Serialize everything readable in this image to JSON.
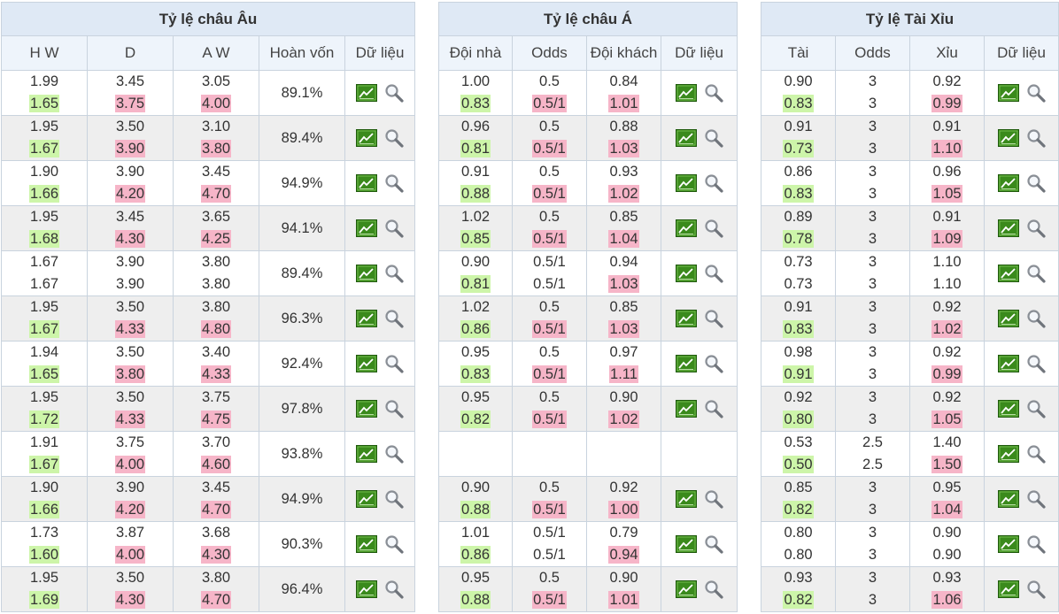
{
  "europe": {
    "title": "Tỷ lệ châu Âu",
    "headers": [
      "H W",
      "D",
      "A W",
      "Hoàn vốn",
      "Dữ liệu"
    ],
    "rows": [
      {
        "a": {
          "o": "1.99",
          "c": "1.65",
          "s": "up"
        },
        "b": {
          "o": "3.45",
          "c": "3.75",
          "s": "dn"
        },
        "c": {
          "o": "3.05",
          "c": "4.00",
          "s": "dn"
        },
        "ret": "89.1%"
      },
      {
        "a": {
          "o": "1.95",
          "c": "1.67",
          "s": "up"
        },
        "b": {
          "o": "3.50",
          "c": "3.90",
          "s": "dn"
        },
        "c": {
          "o": "3.10",
          "c": "3.80",
          "s": "dn"
        },
        "ret": "89.4%"
      },
      {
        "a": {
          "o": "1.90",
          "c": "1.66",
          "s": "up"
        },
        "b": {
          "o": "3.90",
          "c": "4.20",
          "s": "dn"
        },
        "c": {
          "o": "3.45",
          "c": "4.70",
          "s": "dn"
        },
        "ret": "94.9%"
      },
      {
        "a": {
          "o": "1.95",
          "c": "1.68",
          "s": "up"
        },
        "b": {
          "o": "3.45",
          "c": "4.30",
          "s": "dn"
        },
        "c": {
          "o": "3.65",
          "c": "4.25",
          "s": "dn"
        },
        "ret": "94.1%"
      },
      {
        "a": {
          "o": "1.67",
          "c": "1.67",
          "s": ""
        },
        "b": {
          "o": "3.90",
          "c": "3.90",
          "s": ""
        },
        "c": {
          "o": "3.80",
          "c": "3.80",
          "s": ""
        },
        "ret": "89.4%"
      },
      {
        "a": {
          "o": "1.95",
          "c": "1.67",
          "s": "up"
        },
        "b": {
          "o": "3.50",
          "c": "4.33",
          "s": "dn"
        },
        "c": {
          "o": "3.80",
          "c": "4.80",
          "s": "dn"
        },
        "ret": "96.3%"
      },
      {
        "a": {
          "o": "1.94",
          "c": "1.65",
          "s": "up"
        },
        "b": {
          "o": "3.50",
          "c": "3.80",
          "s": "dn"
        },
        "c": {
          "o": "3.40",
          "c": "4.33",
          "s": "dn"
        },
        "ret": "92.4%"
      },
      {
        "a": {
          "o": "1.95",
          "c": "1.72",
          "s": "up"
        },
        "b": {
          "o": "3.50",
          "c": "4.33",
          "s": "dn"
        },
        "c": {
          "o": "3.75",
          "c": "4.75",
          "s": "dn"
        },
        "ret": "97.8%"
      },
      {
        "a": {
          "o": "1.91",
          "c": "1.67",
          "s": "up"
        },
        "b": {
          "o": "3.75",
          "c": "4.00",
          "s": "dn"
        },
        "c": {
          "o": "3.70",
          "c": "4.60",
          "s": "dn"
        },
        "ret": "93.8%"
      },
      {
        "a": {
          "o": "1.90",
          "c": "1.66",
          "s": "up"
        },
        "b": {
          "o": "3.90",
          "c": "4.20",
          "s": "dn"
        },
        "c": {
          "o": "3.45",
          "c": "4.70",
          "s": "dn"
        },
        "ret": "94.9%"
      },
      {
        "a": {
          "o": "1.73",
          "c": "1.60",
          "s": "up"
        },
        "b": {
          "o": "3.87",
          "c": "4.00",
          "s": "dn"
        },
        "c": {
          "o": "3.68",
          "c": "4.30",
          "s": "dn"
        },
        "ret": "90.3%"
      },
      {
        "a": {
          "o": "1.95",
          "c": "1.69",
          "s": "up"
        },
        "b": {
          "o": "3.50",
          "c": "4.30",
          "s": "dn"
        },
        "c": {
          "o": "3.80",
          "c": "4.70",
          "s": "dn"
        },
        "ret": "96.4%"
      }
    ]
  },
  "asia": {
    "title": "Tỷ lệ châu Á",
    "headers": [
      "Đội nhà",
      "Odds",
      "Đội khách",
      "Dữ liệu"
    ],
    "rows": [
      {
        "a": {
          "o": "1.00",
          "c": "0.83",
          "s": "up"
        },
        "b": {
          "o": "0.5",
          "c": "0.5/1",
          "s": "dn"
        },
        "c": {
          "o": "0.84",
          "c": "1.01",
          "s": "dn"
        }
      },
      {
        "a": {
          "o": "0.96",
          "c": "0.81",
          "s": "up"
        },
        "b": {
          "o": "0.5",
          "c": "0.5/1",
          "s": "dn"
        },
        "c": {
          "o": "0.88",
          "c": "1.03",
          "s": "dn"
        }
      },
      {
        "a": {
          "o": "0.91",
          "c": "0.88",
          "s": "up"
        },
        "b": {
          "o": "0.5",
          "c": "0.5/1",
          "s": "dn"
        },
        "c": {
          "o": "0.93",
          "c": "1.02",
          "s": "dn"
        }
      },
      {
        "a": {
          "o": "1.02",
          "c": "0.85",
          "s": "up"
        },
        "b": {
          "o": "0.5",
          "c": "0.5/1",
          "s": "dn"
        },
        "c": {
          "o": "0.85",
          "c": "1.04",
          "s": "dn"
        }
      },
      {
        "a": {
          "o": "0.90",
          "c": "0.81",
          "s": "up"
        },
        "b": {
          "o": "0.5/1",
          "c": "0.5/1",
          "s": ""
        },
        "c": {
          "o": "0.94",
          "c": "1.03",
          "s": "dn"
        }
      },
      {
        "a": {
          "o": "1.02",
          "c": "0.86",
          "s": "up"
        },
        "b": {
          "o": "0.5",
          "c": "0.5/1",
          "s": "dn"
        },
        "c": {
          "o": "0.85",
          "c": "1.03",
          "s": "dn"
        }
      },
      {
        "a": {
          "o": "0.95",
          "c": "0.83",
          "s": "up"
        },
        "b": {
          "o": "0.5",
          "c": "0.5/1",
          "s": "dn"
        },
        "c": {
          "o": "0.97",
          "c": "1.11",
          "s": "dn"
        }
      },
      {
        "a": {
          "o": "0.95",
          "c": "0.82",
          "s": "up"
        },
        "b": {
          "o": "0.5",
          "c": "0.5/1",
          "s": "dn"
        },
        "c": {
          "o": "0.90",
          "c": "1.02",
          "s": "dn"
        }
      },
      null,
      {
        "a": {
          "o": "0.90",
          "c": "0.88",
          "s": "up"
        },
        "b": {
          "o": "0.5",
          "c": "0.5/1",
          "s": "dn"
        },
        "c": {
          "o": "0.92",
          "c": "1.00",
          "s": "dn"
        }
      },
      {
        "a": {
          "o": "1.01",
          "c": "0.86",
          "s": "up"
        },
        "b": {
          "o": "0.5/1",
          "c": "0.5/1",
          "s": ""
        },
        "c": {
          "o": "0.79",
          "c": "0.94",
          "s": "dn"
        }
      },
      {
        "a": {
          "o": "0.95",
          "c": "0.88",
          "s": "up"
        },
        "b": {
          "o": "0.5",
          "c": "0.5/1",
          "s": "dn"
        },
        "c": {
          "o": "0.90",
          "c": "1.01",
          "s": "dn"
        }
      }
    ]
  },
  "overunder": {
    "title": "Tỷ lệ Tài Xỉu",
    "headers": [
      "Tài",
      "Odds",
      "Xỉu",
      "Dữ liệu"
    ],
    "rows": [
      {
        "a": {
          "o": "0.90",
          "c": "0.83",
          "s": "up"
        },
        "b": {
          "o": "3",
          "c": "3",
          "s": ""
        },
        "c": {
          "o": "0.92",
          "c": "0.99",
          "s": "dn"
        }
      },
      {
        "a": {
          "o": "0.91",
          "c": "0.73",
          "s": "up"
        },
        "b": {
          "o": "3",
          "c": "3",
          "s": ""
        },
        "c": {
          "o": "0.91",
          "c": "1.10",
          "s": "dn"
        }
      },
      {
        "a": {
          "o": "0.86",
          "c": "0.83",
          "s": "up"
        },
        "b": {
          "o": "3",
          "c": "3",
          "s": ""
        },
        "c": {
          "o": "0.96",
          "c": "1.05",
          "s": "dn"
        }
      },
      {
        "a": {
          "o": "0.89",
          "c": "0.78",
          "s": "up"
        },
        "b": {
          "o": "3",
          "c": "3",
          "s": ""
        },
        "c": {
          "o": "0.91",
          "c": "1.09",
          "s": "dn"
        }
      },
      {
        "a": {
          "o": "0.73",
          "c": "0.73",
          "s": ""
        },
        "b": {
          "o": "3",
          "c": "3",
          "s": ""
        },
        "c": {
          "o": "1.10",
          "c": "1.10",
          "s": ""
        }
      },
      {
        "a": {
          "o": "0.91",
          "c": "0.83",
          "s": "up"
        },
        "b": {
          "o": "3",
          "c": "3",
          "s": ""
        },
        "c": {
          "o": "0.92",
          "c": "1.02",
          "s": "dn"
        }
      },
      {
        "a": {
          "o": "0.98",
          "c": "0.91",
          "s": "up"
        },
        "b": {
          "o": "3",
          "c": "3",
          "s": ""
        },
        "c": {
          "o": "0.92",
          "c": "0.99",
          "s": "dn"
        }
      },
      {
        "a": {
          "o": "0.92",
          "c": "0.80",
          "s": "up"
        },
        "b": {
          "o": "3",
          "c": "3",
          "s": ""
        },
        "c": {
          "o": "0.92",
          "c": "1.05",
          "s": "dn"
        }
      },
      {
        "a": {
          "o": "0.53",
          "c": "0.50",
          "s": "up"
        },
        "b": {
          "o": "2.5",
          "c": "2.5",
          "s": ""
        },
        "c": {
          "o": "1.40",
          "c": "1.50",
          "s": "dn"
        }
      },
      {
        "a": {
          "o": "0.85",
          "c": "0.82",
          "s": "up"
        },
        "b": {
          "o": "3",
          "c": "3",
          "s": ""
        },
        "c": {
          "o": "0.95",
          "c": "1.04",
          "s": "dn"
        }
      },
      {
        "a": {
          "o": "0.80",
          "c": "0.80",
          "s": ""
        },
        "b": {
          "o": "3",
          "c": "3",
          "s": ""
        },
        "c": {
          "o": "0.90",
          "c": "0.90",
          "s": ""
        }
      },
      {
        "a": {
          "o": "0.93",
          "c": "0.82",
          "s": "up"
        },
        "b": {
          "o": "3",
          "c": "3",
          "s": ""
        },
        "c": {
          "o": "0.93",
          "c": "1.06",
          "s": "dn"
        }
      }
    ]
  },
  "icons": {
    "chart": "line-chart-icon",
    "search": "magnifier-icon"
  },
  "colors": {
    "up": "#cdf5a9",
    "down": "#f6b5c8",
    "header": "#dfe9f5",
    "alt_row": "#eeeeee",
    "chart_icon": "#3a8a1c"
  }
}
